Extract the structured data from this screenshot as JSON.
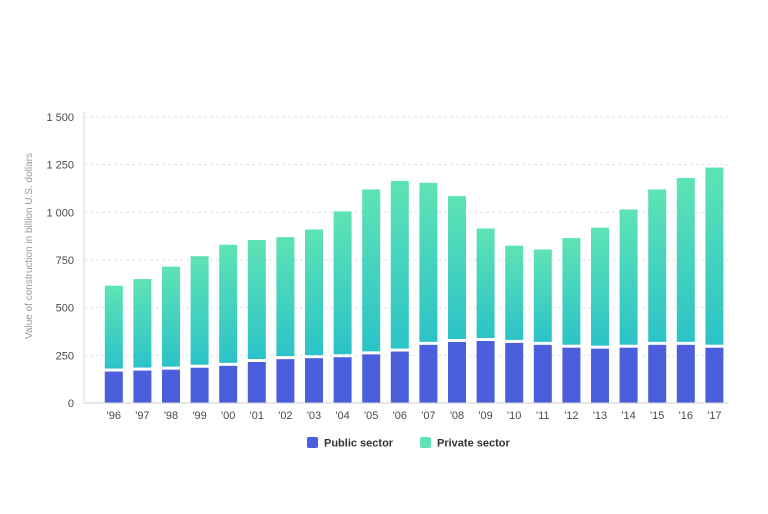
{
  "chart_data": {
    "type": "bar",
    "stacked": true,
    "categories": [
      "'96",
      "'97",
      "'98",
      "'99",
      "'00",
      "'01",
      "'02",
      "'03",
      "'04",
      "'05",
      "'06",
      "'07",
      "'08",
      "'09",
      "'10",
      "'11",
      "'12",
      "'13",
      "'14",
      "'15",
      "'16",
      "'17"
    ],
    "series": [
      {
        "name": "Public sector",
        "color": "#4b5fdc",
        "values": [
          165,
          170,
          175,
          185,
          195,
          215,
          230,
          235,
          240,
          255,
          270,
          305,
          320,
          325,
          315,
          305,
          290,
          285,
          290,
          305,
          305,
          290
        ]
      },
      {
        "name": "Private sector",
        "color": "#5ee3b4",
        "color_bottom": "#2cc3c8",
        "values": [
          450,
          480,
          540,
          585,
          635,
          640,
          640,
          675,
          765,
          865,
          895,
          850,
          765,
          590,
          510,
          500,
          575,
          635,
          725,
          815,
          875,
          945
        ]
      }
    ],
    "ylabel": "Value of construction in billion U.S. dollars",
    "xlabel": "",
    "title": "",
    "ylim": [
      0,
      1500
    ],
    "yticks": [
      0,
      250,
      500,
      750,
      1000,
      1250,
      1500
    ],
    "ytick_labels": [
      "0",
      "250",
      "500",
      "750",
      "1 000",
      "1 250",
      "1 500"
    ],
    "grid": true,
    "legend_position": "bottom-center"
  }
}
